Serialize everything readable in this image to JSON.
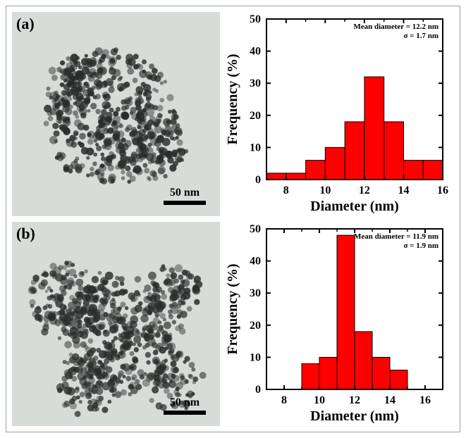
{
  "panels": {
    "a": {
      "label": "(a)",
      "scale_label": "50 nm",
      "tem_bg": "#d7dcd9",
      "tem_particle_fill": "#2a2d2b",
      "tem_particle_opacity": 0.85,
      "stats_lines": [
        "Mean diameter = 12.2 nm",
        "σ = 1.7 nm"
      ],
      "chart": {
        "type": "bar",
        "xlabel": "Diameter (nm)",
        "ylabel": "Frequency (%)",
        "xlim": [
          7,
          16
        ],
        "xticks": [
          8,
          10,
          12,
          14,
          16
        ],
        "ylim": [
          0,
          50
        ],
        "yticks": [
          0,
          10,
          20,
          30,
          40,
          50
        ],
        "bin_width": 1,
        "bins": [
          7,
          8,
          9,
          10,
          11,
          12,
          13,
          14,
          15
        ],
        "values": [
          2,
          2,
          6,
          10,
          18,
          32,
          18,
          6,
          6
        ],
        "bar_fill": "#ff0000",
        "bar_stroke": "#000000",
        "axis_color": "#000000",
        "axis_width": 2,
        "tick_fontsize": 16,
        "label_fontsize": 20,
        "label_fontweight": "bold",
        "stats_fontsize": 11,
        "stats_fontweight": "bold",
        "background": "#ffffff"
      }
    },
    "b": {
      "label": "(b)",
      "scale_label": "50 nm",
      "tem_bg": "#d7dcd9",
      "tem_particle_fill": "#2a2d2b",
      "tem_particle_opacity": 0.8,
      "stats_lines": [
        "Mean diameter = 11.9 nm",
        "σ = 1.9 nm"
      ],
      "chart": {
        "type": "bar",
        "xlabel": "Diameter (nm)",
        "ylabel": "Frequency (%)",
        "xlim": [
          7,
          17
        ],
        "xticks": [
          8,
          10,
          12,
          14,
          16
        ],
        "ylim": [
          0,
          50
        ],
        "yticks": [
          0,
          10,
          20,
          30,
          40,
          50
        ],
        "bin_width": 1,
        "bins": [
          9,
          10,
          11,
          12,
          13,
          14
        ],
        "values": [
          8,
          10,
          48,
          18,
          10,
          6
        ],
        "bar_fill": "#ff0000",
        "bar_stroke": "#000000",
        "axis_color": "#000000",
        "axis_width": 2,
        "tick_fontsize": 16,
        "label_fontsize": 20,
        "label_fontweight": "bold",
        "stats_fontsize": 11,
        "stats_fontweight": "bold",
        "background": "#ffffff"
      }
    }
  }
}
